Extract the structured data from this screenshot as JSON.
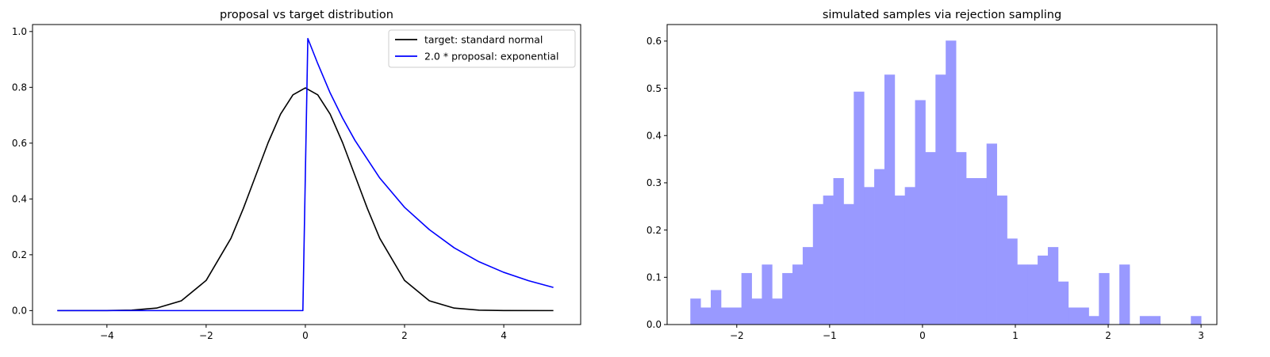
{
  "chart_data": [
    {
      "type": "line",
      "title": "proposal vs target distribution",
      "xlabel": "",
      "ylabel": "",
      "xlim": [
        -5.5,
        5.55
      ],
      "ylim": [
        -0.05,
        1.025
      ],
      "xticks": [
        -4,
        -2,
        0,
        2,
        4
      ],
      "xtick_labels": [
        "−4",
        "−2",
        "0",
        "2",
        "4"
      ],
      "yticks": [
        0.0,
        0.2,
        0.4,
        0.6,
        0.8,
        1.0
      ],
      "ytick_labels": [
        "0.0",
        "0.2",
        "0.4",
        "0.6",
        "0.8",
        "1.0"
      ],
      "grid": false,
      "legend_position": "top-right",
      "series": [
        {
          "name": "target: standard normal",
          "color": "#000000",
          "x": [
            -5.0,
            -4.0,
            -3.5,
            -3.0,
            -2.5,
            -2.0,
            -1.5,
            -1.25,
            -1.0,
            -0.75,
            -0.5,
            -0.25,
            0.0,
            0.25,
            0.5,
            0.75,
            1.0,
            1.25,
            1.5,
            2.0,
            2.5,
            3.0,
            3.5,
            4.0,
            5.0
          ],
          "y": [
            0.0,
            0.0003,
            0.0017,
            0.0089,
            0.035,
            0.108,
            0.259,
            0.366,
            0.484,
            0.602,
            0.704,
            0.773,
            0.798,
            0.773,
            0.704,
            0.602,
            0.484,
            0.366,
            0.259,
            0.108,
            0.035,
            0.0089,
            0.0017,
            0.0003,
            0.0
          ]
        },
        {
          "name": "2.0 * proposal: exponential",
          "color": "#0000ff",
          "x": [
            -5.0,
            -0.05,
            0.05,
            0.25,
            0.5,
            0.75,
            1.0,
            1.5,
            2.0,
            2.5,
            3.0,
            3.5,
            4.0,
            4.5,
            5.0
          ],
          "y": [
            0.0,
            0.0,
            0.975,
            0.885,
            0.78,
            0.69,
            0.61,
            0.475,
            0.37,
            0.29,
            0.225,
            0.175,
            0.137,
            0.107,
            0.083
          ]
        }
      ]
    },
    {
      "type": "bar",
      "title": "simulated samples via rejection sampling",
      "xlabel": "",
      "ylabel": "",
      "xlim": [
        -2.75,
        3.17
      ],
      "ylim": [
        0.0,
        0.635
      ],
      "xticks": [
        -2,
        -1,
        0,
        1,
        2,
        3
      ],
      "xtick_labels": [
        "−2",
        "−1",
        "0",
        "1",
        "2",
        "3"
      ],
      "yticks": [
        0.0,
        0.1,
        0.2,
        0.3,
        0.4,
        0.5,
        0.6
      ],
      "ytick_labels": [
        "0.0",
        "0.1",
        "0.2",
        "0.3",
        "0.4",
        "0.5",
        "0.6"
      ],
      "grid": false,
      "bar_color": "#9999ff",
      "bins_start": -2.5,
      "bin_width": 0.11,
      "values": [
        0.055,
        0.036,
        0.073,
        0.036,
        0.036,
        0.109,
        0.055,
        0.127,
        0.055,
        0.109,
        0.127,
        0.164,
        0.255,
        0.273,
        0.31,
        0.255,
        0.493,
        0.291,
        0.329,
        0.529,
        0.273,
        0.291,
        0.475,
        0.365,
        0.529,
        0.601,
        0.365,
        0.31,
        0.31,
        0.383,
        0.273,
        0.182,
        0.127,
        0.127,
        0.146,
        0.164,
        0.091,
        0.036,
        0.036,
        0.018,
        0.109,
        0.0,
        0.127,
        0.0,
        0.018,
        0.018,
        0.0,
        0.0,
        0.0,
        0.018
      ]
    }
  ]
}
